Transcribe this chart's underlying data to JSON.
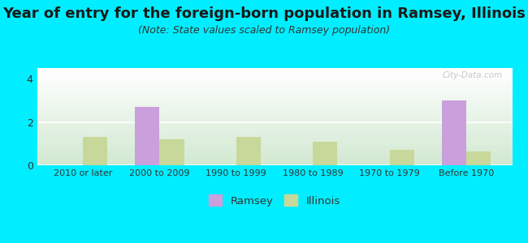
{
  "title": "Year of entry for the foreign-born population in Ramsey, Illinois",
  "subtitle": "(Note: State values scaled to Ramsey population)",
  "categories": [
    "2010 or later",
    "2000 to 2009",
    "1990 to 1999",
    "1980 to 1989",
    "1970 to 1979",
    "Before 1970"
  ],
  "ramsey_values": [
    0,
    2.7,
    0,
    0,
    0,
    3.0
  ],
  "illinois_values": [
    1.3,
    1.2,
    1.3,
    1.1,
    0.7,
    0.65
  ],
  "ramsey_color": "#c9a0dc",
  "illinois_color": "#c8d89a",
  "background_outer": "#00eeff",
  "ylim": [
    0,
    4.5
  ],
  "yticks": [
    0,
    2,
    4
  ],
  "bar_width": 0.32,
  "title_fontsize": 13,
  "subtitle_fontsize": 9,
  "watermark": "City-Data.com"
}
